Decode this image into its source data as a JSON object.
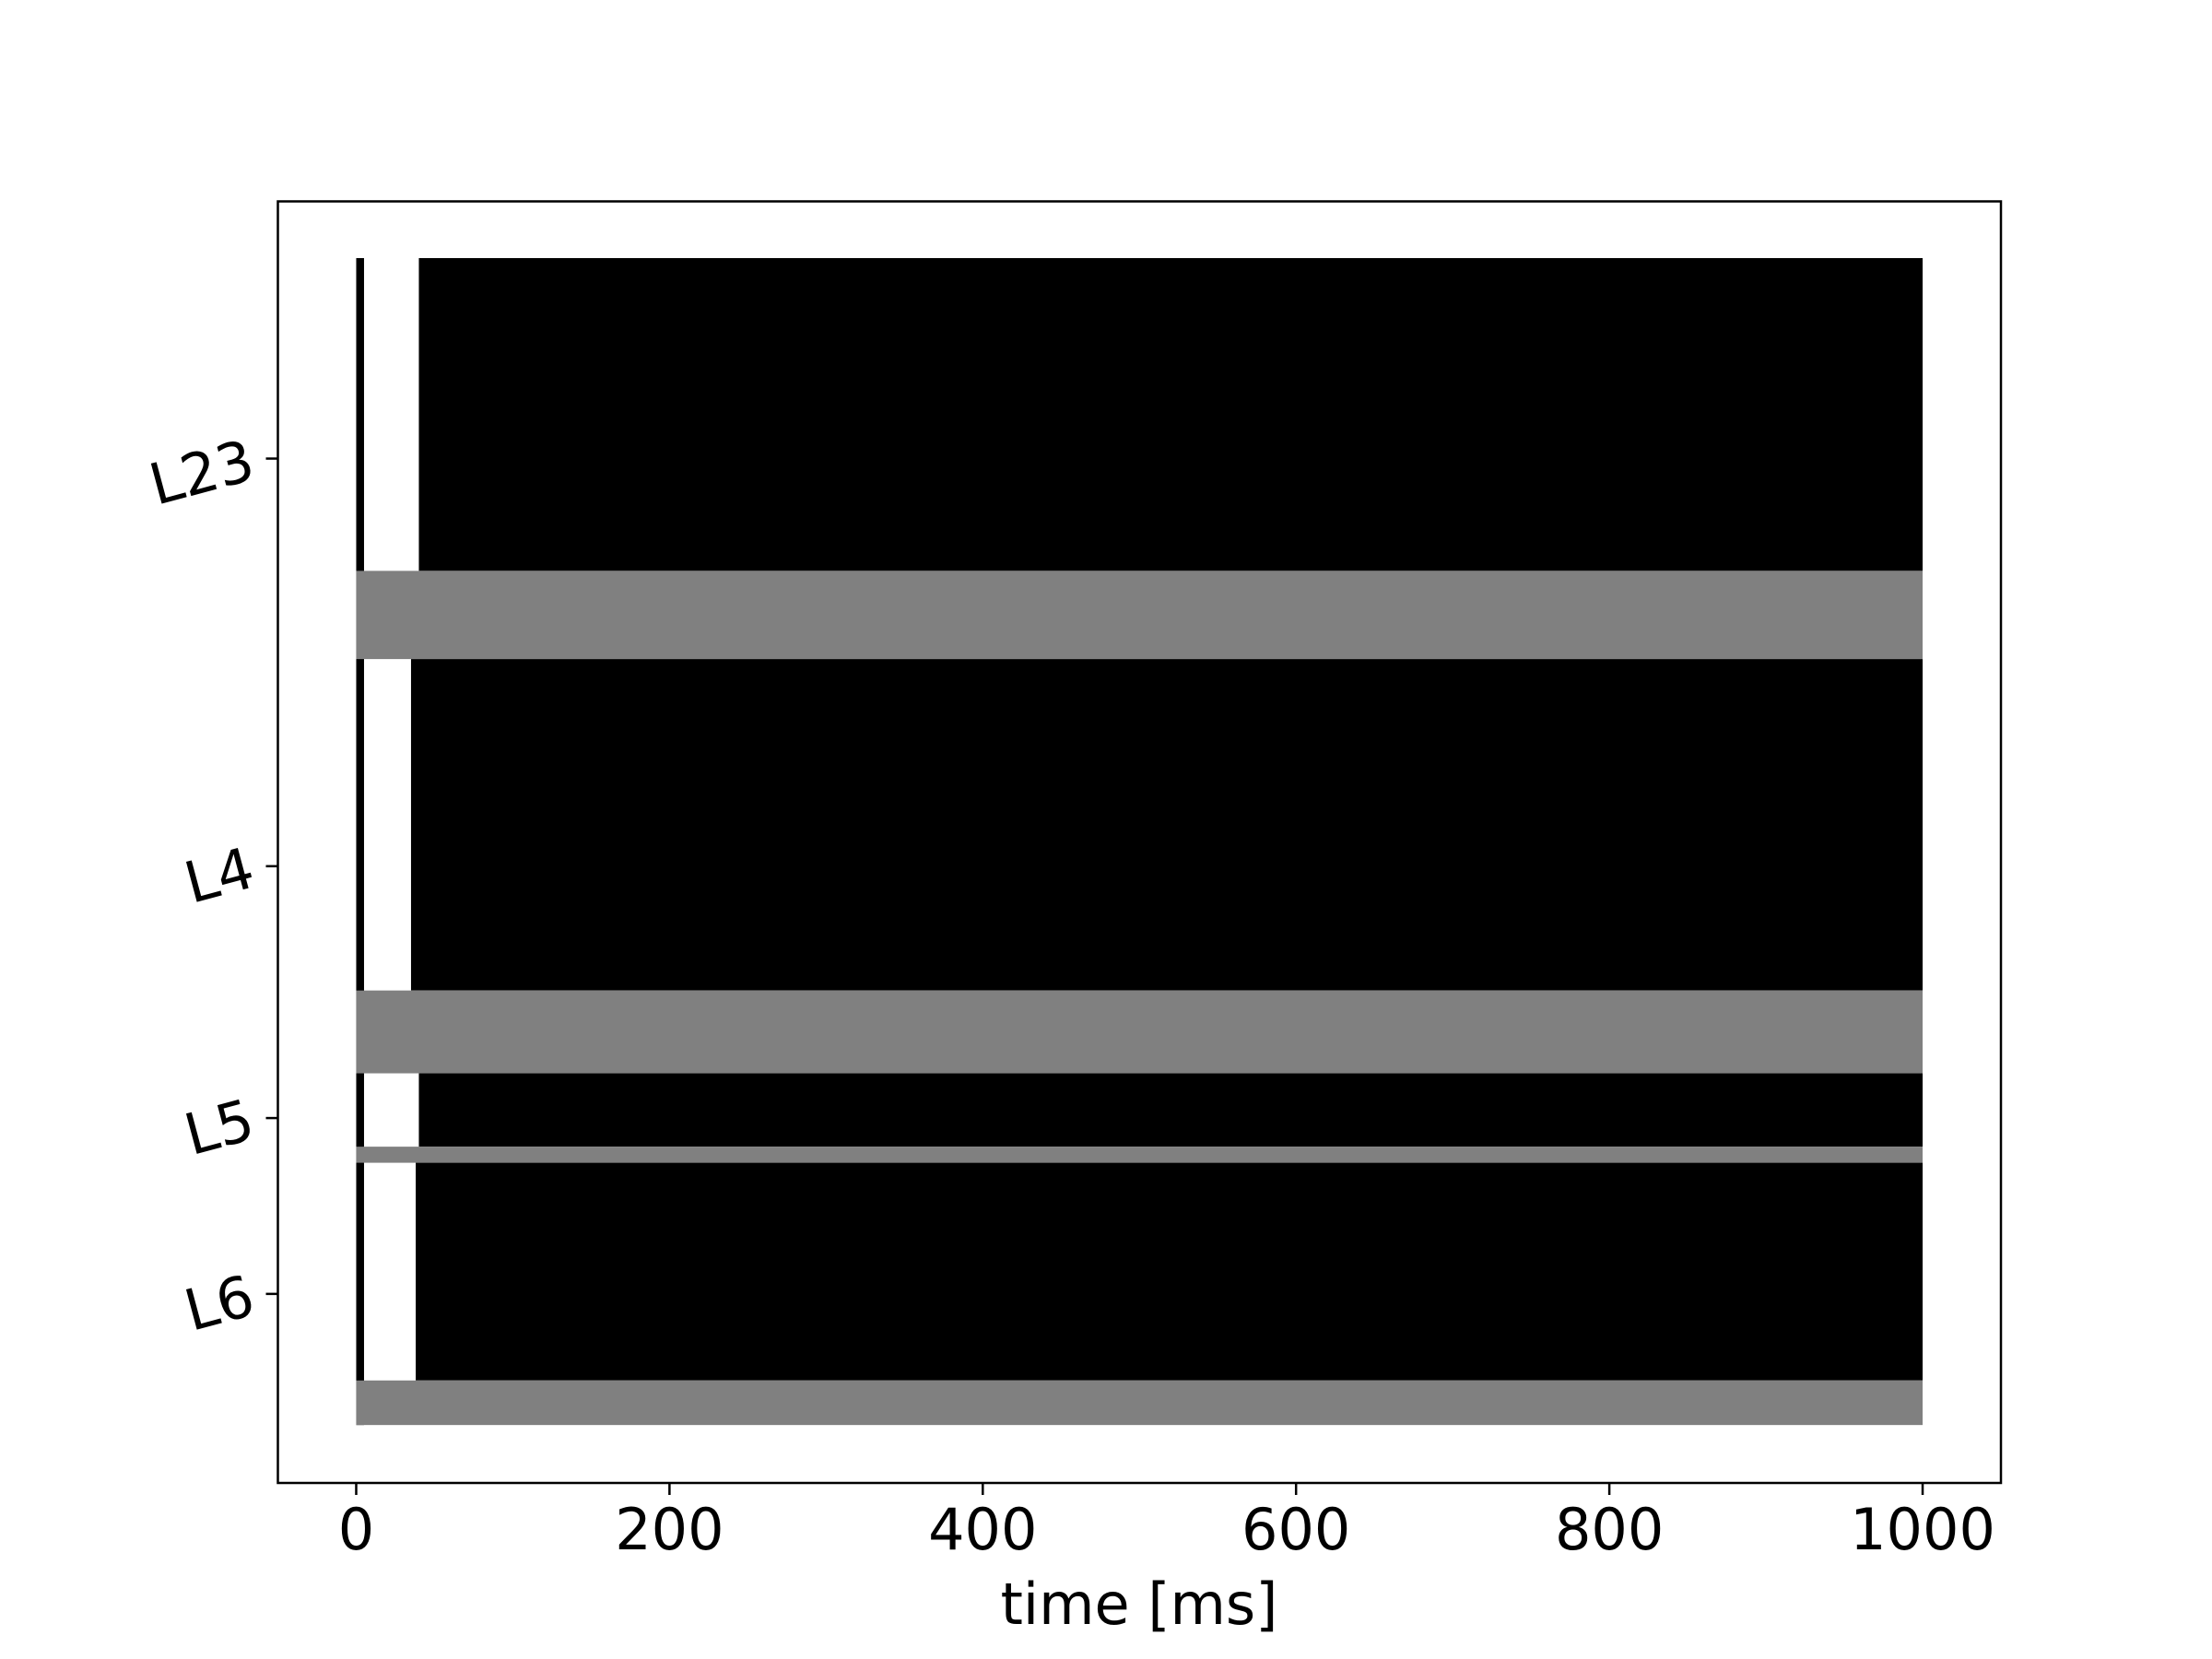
{
  "chart_data": {
    "type": "raster",
    "xlabel": "time [ms]",
    "xlim": [
      -50,
      1050
    ],
    "xticks": [
      0,
      200,
      400,
      600,
      800,
      1000
    ],
    "ylim": [
      81000,
      -3750
    ],
    "yticks": [
      {
        "value": 13258,
        "label": "L23"
      },
      {
        "value": 40214,
        "label": "L4"
      },
      {
        "value": 56869,
        "label": "L5"
      },
      {
        "value": 68497,
        "label": "L6"
      }
    ],
    "blocks": [
      {
        "color": "#000000",
        "x": [
          0,
          5
        ],
        "y": [
          0,
          77169
        ]
      },
      {
        "color": "#000000",
        "x": [
          40,
          1000
        ],
        "y": [
          0,
          20683
        ]
      },
      {
        "color": "#808080",
        "x": [
          0,
          1000
        ],
        "y": [
          20683,
          26517
        ]
      },
      {
        "color": "#000000",
        "x": [
          35,
          1000
        ],
        "y": [
          26517,
          48432
        ]
      },
      {
        "color": "#808080",
        "x": [
          0,
          1000
        ],
        "y": [
          48432,
          53911
        ]
      },
      {
        "color": "#000000",
        "x": [
          40,
          1000
        ],
        "y": [
          53911,
          58761
        ]
      },
      {
        "color": "#808080",
        "x": [
          0,
          1000
        ],
        "y": [
          58761,
          59826
        ]
      },
      {
        "color": "#000000",
        "x": [
          38,
          1000
        ],
        "y": [
          59826,
          74221
        ]
      },
      {
        "color": "#808080",
        "x": [
          0,
          1000
        ],
        "y": [
          74221,
          77169
        ]
      }
    ]
  }
}
